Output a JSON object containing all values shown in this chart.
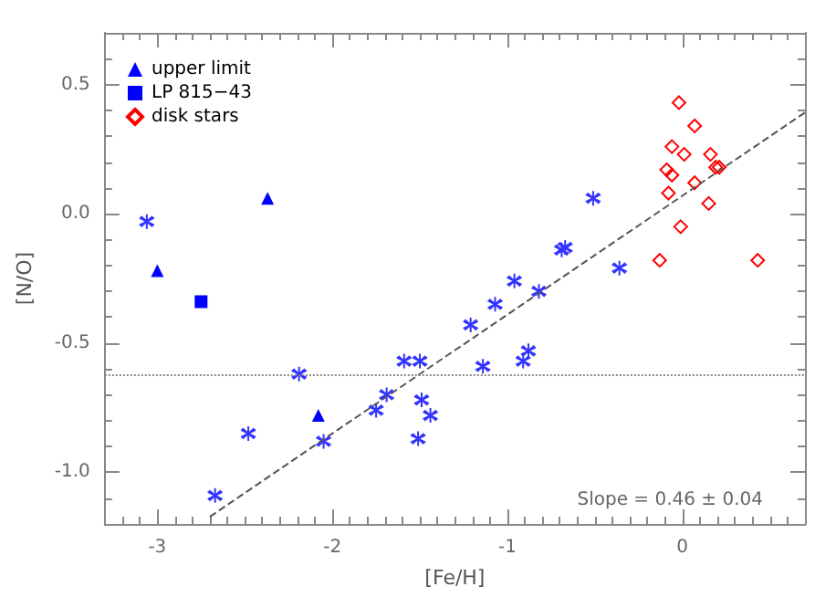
{
  "chart_data": {
    "type": "scatter",
    "xlabel": "[Fe/H]",
    "ylabel": "[N/O]",
    "xlim": [
      -3.3,
      0.7
    ],
    "ylim": [
      -1.2,
      0.7
    ],
    "xticks": [
      -3,
      -2,
      -1,
      0
    ],
    "yticks": [
      {
        "value": -1,
        "label": "-1.0"
      },
      {
        "value": -0.5,
        "label": "-0.5"
      },
      {
        "value": 0,
        "label": "0.0"
      },
      {
        "value": 0.5,
        "label": "0.5"
      }
    ],
    "grid": false,
    "legend": "top left",
    "series": [
      {
        "color": "#3333ff",
        "marker": "cross",
        "x": [
          -3.06,
          -2.19,
          -2.48,
          -2.67,
          -2.05,
          -1.75,
          -1.69,
          -1.59,
          -1.5,
          -1.49,
          -1.44,
          -1.51,
          -0.51,
          -0.67,
          -0.69,
          -0.36,
          -0.96,
          -0.82,
          -1.07,
          -1.21,
          -1.14,
          -0.91,
          -0.88
        ],
        "values": [
          -0.03,
          -0.62,
          -0.85,
          -1.09,
          -0.88,
          -0.76,
          -0.7,
          -0.57,
          -0.57,
          -0.72,
          -0.78,
          -0.87,
          0.06,
          -0.13,
          -0.14,
          -0.21,
          -0.26,
          -0.3,
          -0.35,
          -0.43,
          -0.59,
          -0.57,
          -0.53
        ]
      },
      {
        "name": "upper limit",
        "color": "#0000ff",
        "marker": "triangle",
        "x": [
          -3.0,
          -2.37,
          -2.08
        ],
        "values": [
          -0.22,
          0.06,
          -0.78
        ]
      },
      {
        "name": "LP 815−43",
        "color": "#0000ff",
        "marker": "square",
        "x": [
          -2.75
        ],
        "values": [
          -0.34
        ]
      },
      {
        "name": "disk stars",
        "color": "#ff0000",
        "marker": "diamond",
        "x": [
          -0.02,
          0.07,
          -0.06,
          0.01,
          0.16,
          -0.09,
          -0.06,
          0.19,
          0.21,
          0.07,
          -0.08,
          0.15,
          -0.01,
          -0.13,
          0.43
        ],
        "values": [
          0.43,
          0.34,
          0.26,
          0.23,
          0.23,
          0.17,
          0.15,
          0.18,
          0.18,
          0.12,
          0.08,
          0.04,
          -0.05,
          -0.18,
          -0.18
        ]
      },
      {
        "type": "line",
        "color": "#555555",
        "marker": "none",
        "line_style": "dashed",
        "x": [
          -2.7,
          0.7
        ],
        "values": [
          -1.172,
          0.392
        ]
      }
    ],
    "ref_lines": [
      {
        "axis": "y",
        "value": -0.62,
        "color": "#888888",
        "line_style": "dotted"
      }
    ],
    "annotations": [
      "Slope = 0.46 ± 0.04"
    ]
  }
}
